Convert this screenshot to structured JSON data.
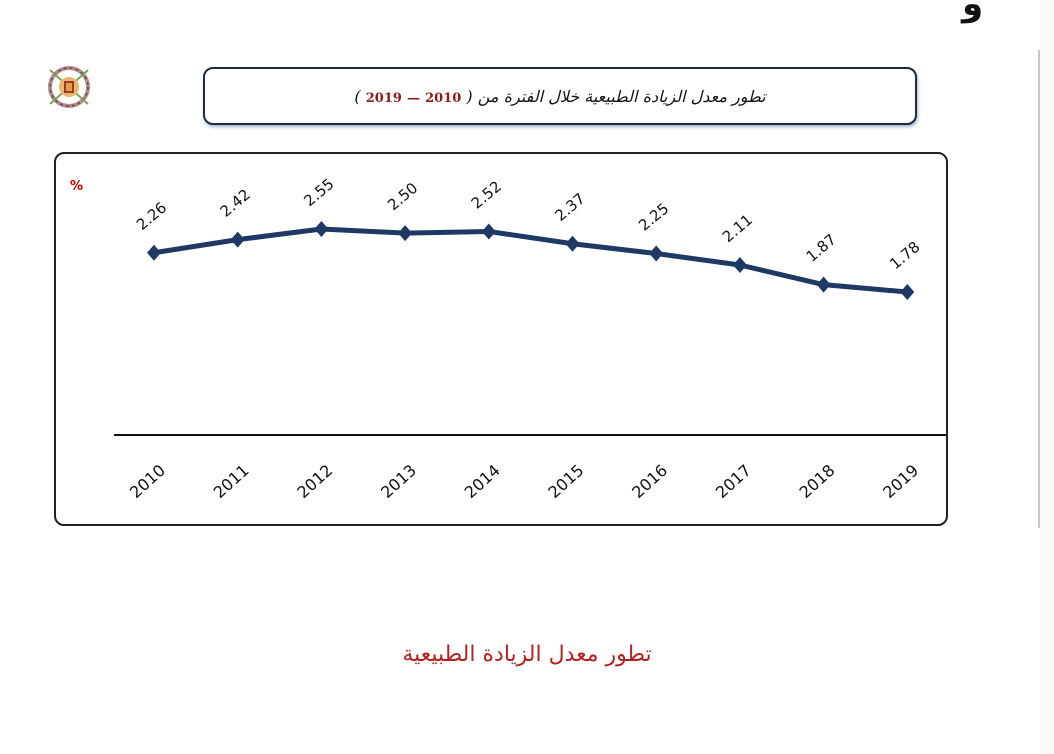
{
  "title": {
    "text": "تطور معدل الزيادة الطبيعية خلال الفترة من",
    "open_paren": "(",
    "year_start": "2010",
    "dash": "—",
    "year_end": "2019",
    "close_paren": ")"
  },
  "caption": "تطور معدل الزيادة الطبيعية",
  "logo": "emblem-logo",
  "colors": {
    "line": "#1f3864",
    "unit": "#c00000",
    "caption": "#b22222",
    "years": "#8b1a1a"
  },
  "chart_data": {
    "type": "line",
    "title": "تطور معدل الزيادة الطبيعية خلال الفترة من ( 2010 — 2019 )",
    "xlabel": "",
    "ylabel": "%",
    "categories": [
      "2010",
      "2011",
      "2012",
      "2013",
      "2014",
      "2015",
      "2016",
      "2017",
      "2018",
      "2019"
    ],
    "series": [
      {
        "name": "معدل الزيادة الطبيعية",
        "values": [
          2.26,
          2.42,
          2.55,
          2.5,
          2.52,
          2.37,
          2.25,
          2.11,
          1.87,
          1.78
        ]
      }
    ],
    "data_labels": [
      "2.26",
      "2.42",
      "2.55",
      "2.50",
      "2.52",
      "2.37",
      "2.25",
      "2.11",
      "1.87",
      "1.78"
    ],
    "grid": false,
    "legend": "none",
    "marker": "diamond"
  }
}
